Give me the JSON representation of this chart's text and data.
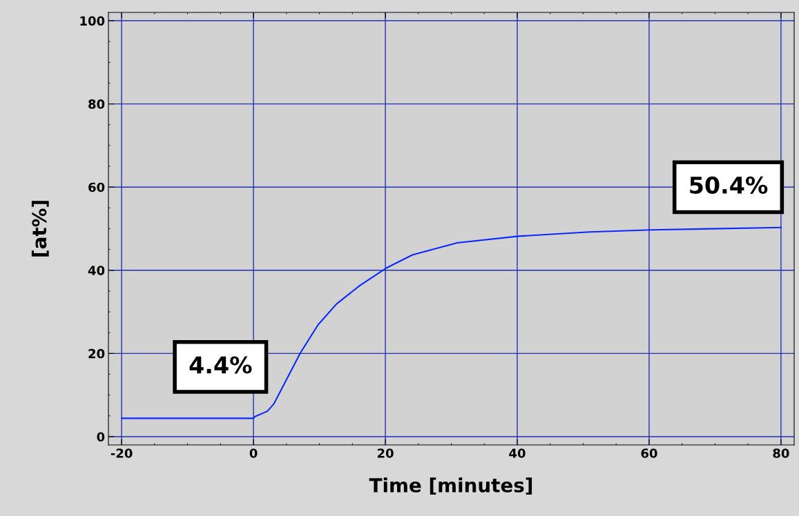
{
  "chart_data": {
    "type": "line",
    "xlabel": "Time [minutes]",
    "ylabel": "[at%]",
    "x": [
      -20,
      0,
      0.2,
      2.1,
      3.1,
      4.9,
      7.1,
      9.8,
      12.6,
      16.1,
      20.1,
      24.1,
      30.9,
      40.2,
      51.0,
      60.3,
      80.0
    ],
    "series": [
      {
        "color": "#0a28ff",
        "values": [
          4.4,
          4.4,
          4.8,
          6.1,
          7.9,
          13.4,
          20.1,
          26.9,
          31.9,
          36.3,
          40.5,
          43.7,
          46.6,
          48.2,
          49.2,
          49.7,
          50.3
        ]
      }
    ],
    "xlim": [
      -22,
      82
    ],
    "ylim": [
      -2,
      102
    ],
    "xticks": [
      -20,
      0,
      20,
      40,
      60,
      80
    ],
    "yticks": [
      0,
      20,
      40,
      60,
      80,
      100
    ],
    "grid": true,
    "annotations": [
      {
        "text": "4.4%",
        "x": -5,
        "y": 4.4
      },
      {
        "text": "50.4%",
        "x": 72,
        "y": 50.4
      }
    ]
  }
}
